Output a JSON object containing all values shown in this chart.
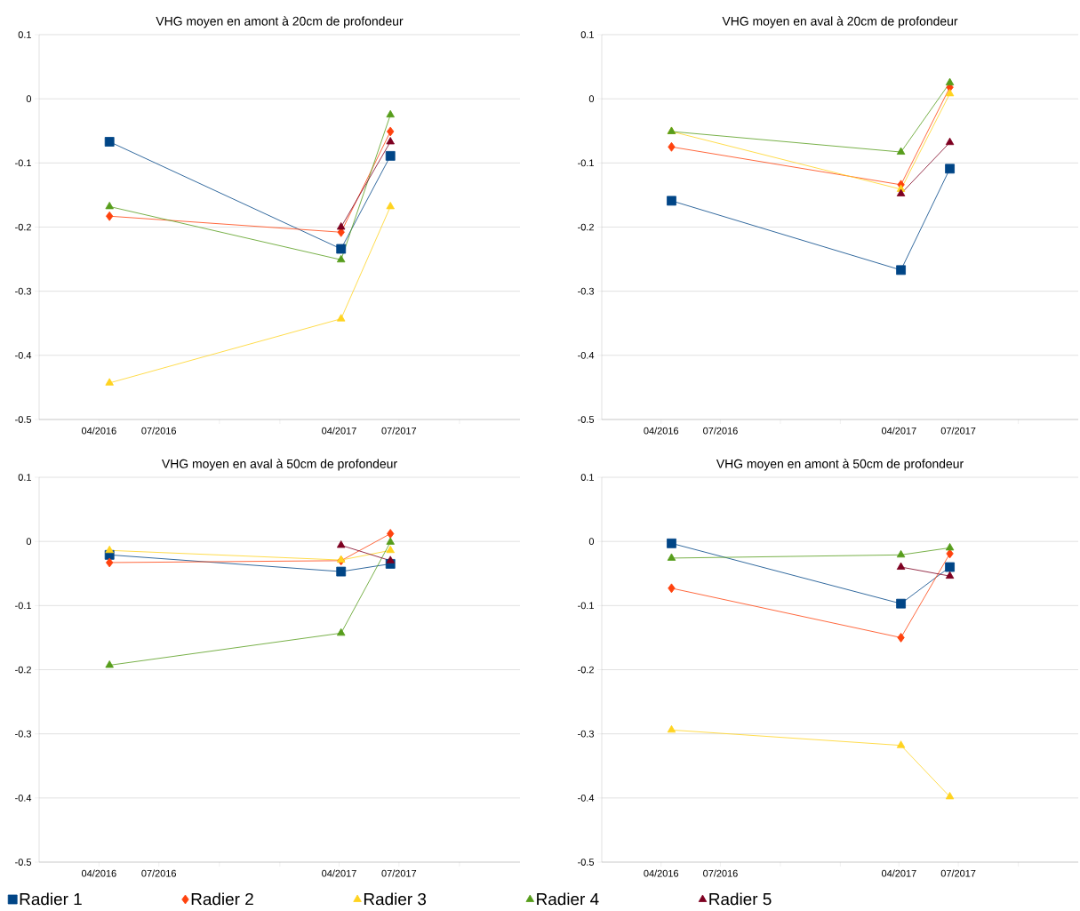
{
  "chart_data": [
    {
      "type": "line",
      "title": "VHG moyen en amont à 20cm de profondeur",
      "x": [
        "2016-04-17",
        "2017-04-04",
        "2017-06-18"
      ],
      "xlim": [
        "2016-01-01",
        "2018-01-01"
      ],
      "xticks": [
        {
          "value": "2016-04-01",
          "label": "04/2016"
        },
        {
          "value": "2016-07-01",
          "label": "07/2016"
        },
        {
          "value": "2016-10-01",
          "label": null
        },
        {
          "value": "2017-01-01",
          "label": null
        },
        {
          "value": "2017-04-01",
          "label": "04/2017"
        },
        {
          "value": "2017-07-01",
          "label": "07/2017"
        },
        {
          "value": "2017-10-01",
          "label": null
        }
      ],
      "ylim": [
        -0.5,
        0.1
      ],
      "yticks": [
        -0.5,
        -0.4,
        -0.3,
        -0.2,
        -0.1,
        0,
        0.1
      ],
      "grid": "y",
      "line_style": "solid",
      "series": [
        {
          "color": "#004586",
          "marker": "square",
          "values": [
            -0.067,
            -0.234,
            -0.089
          ]
        },
        {
          "color": "#ff420e",
          "marker": "diamond",
          "values": [
            -0.183,
            -0.208,
            -0.051
          ]
        },
        {
          "color": "#ffd320",
          "marker": "triangle",
          "values": [
            -0.443,
            -0.343,
            -0.168
          ]
        },
        {
          "color": "#579d1c",
          "marker": "triangle",
          "values": [
            -0.168,
            -0.251,
            -0.025
          ]
        },
        {
          "color": "#7e0021",
          "marker": "triangle",
          "values": [
            null,
            -0.2,
            -0.067
          ]
        }
      ]
    },
    {
      "type": "line",
      "title": "VHG moyen en aval à 20cm de profondeur",
      "x": [
        "2016-04-17",
        "2017-04-04",
        "2017-06-18"
      ],
      "xlim": [
        "2016-01-01",
        "2018-01-01"
      ],
      "xticks": [
        {
          "value": "2016-04-01",
          "label": "04/2016"
        },
        {
          "value": "2016-07-01",
          "label": "07/2016"
        },
        {
          "value": "2016-10-01",
          "label": null
        },
        {
          "value": "2017-01-01",
          "label": null
        },
        {
          "value": "2017-04-01",
          "label": "04/2017"
        },
        {
          "value": "2017-07-01",
          "label": "07/2017"
        },
        {
          "value": "2017-10-01",
          "label": null
        }
      ],
      "ylim": [
        -0.5,
        0.1
      ],
      "yticks": [
        -0.5,
        -0.4,
        -0.3,
        -0.2,
        -0.1,
        0,
        0.1
      ],
      "grid": "y",
      "line_style": "solid",
      "series": [
        {
          "color": "#004586",
          "marker": "square",
          "values": [
            -0.159,
            -0.267,
            -0.109
          ]
        },
        {
          "color": "#ff420e",
          "marker": "diamond",
          "values": [
            -0.075,
            -0.134,
            0.018
          ]
        },
        {
          "color": "#ffd320",
          "marker": "triangle",
          "values": [
            -0.051,
            -0.141,
            0.008
          ]
        },
        {
          "color": "#579d1c",
          "marker": "triangle",
          "values": [
            -0.051,
            -0.083,
            0.025
          ]
        },
        {
          "color": "#7e0021",
          "marker": "triangle",
          "values": [
            null,
            -0.148,
            -0.068
          ]
        }
      ]
    },
    {
      "type": "line",
      "title": "VHG moyen en aval à 50cm de profondeur",
      "x": [
        "2016-04-17",
        "2017-04-04",
        "2017-06-18"
      ],
      "legend": "bottom",
      "xlim": [
        "2016-01-01",
        "2018-01-01"
      ],
      "xticks": [
        {
          "value": "2016-04-01",
          "label": "04/2016"
        },
        {
          "value": "2016-07-01",
          "label": "07/2016"
        },
        {
          "value": "2016-10-01",
          "label": null
        },
        {
          "value": "2017-01-01",
          "label": null
        },
        {
          "value": "2017-04-01",
          "label": "04/2017"
        },
        {
          "value": "2017-07-01",
          "label": "07/2017"
        },
        {
          "value": "2017-10-01",
          "label": null
        }
      ],
      "ylim": [
        -0.5,
        0.1
      ],
      "yticks": [
        -0.5,
        -0.4,
        -0.3,
        -0.2,
        -0.1,
        0,
        0.1
      ],
      "grid": "y",
      "line_style": "solid",
      "series": [
        {
          "name": "Radier 1",
          "color": "#004586",
          "marker": "square",
          "values": [
            -0.021,
            -0.047,
            -0.035
          ]
        },
        {
          "name": "Radier 2",
          "color": "#ff420e",
          "marker": "diamond",
          "values": [
            -0.033,
            -0.03,
            0.012
          ]
        },
        {
          "name": "Radier 3",
          "color": "#ffd320",
          "marker": "triangle",
          "values": [
            -0.014,
            -0.029,
            -0.014
          ]
        },
        {
          "name": "Radier 4",
          "color": "#579d1c",
          "marker": "triangle",
          "values": [
            -0.193,
            -0.143,
            -0.001
          ]
        },
        {
          "name": "Radier 5",
          "color": "#7e0021",
          "marker": "triangle",
          "values": [
            null,
            -0.006,
            -0.03
          ]
        }
      ]
    },
    {
      "type": "line",
      "title": "VHG moyen en amont à 50cm de profondeur",
      "x": [
        "2016-04-17",
        "2017-04-04",
        "2017-06-18"
      ],
      "xlim": [
        "2016-01-01",
        "2018-01-01"
      ],
      "xticks": [
        {
          "value": "2016-04-01",
          "label": "04/2016"
        },
        {
          "value": "2016-07-01",
          "label": "07/2016"
        },
        {
          "value": "2016-10-01",
          "label": null
        },
        {
          "value": "2017-01-01",
          "label": null
        },
        {
          "value": "2017-04-01",
          "label": "04/2017"
        },
        {
          "value": "2017-07-01",
          "label": "07/2017"
        },
        {
          "value": "2017-10-01",
          "label": null
        }
      ],
      "ylim": [
        -0.5,
        0.1
      ],
      "yticks": [
        -0.5,
        -0.4,
        -0.3,
        -0.2,
        -0.1,
        0,
        0.1
      ],
      "grid": "y",
      "line_style": "solid",
      "series": [
        {
          "color": "#004586",
          "marker": "square",
          "values": [
            -0.003,
            -0.097,
            -0.04
          ]
        },
        {
          "color": "#ff420e",
          "marker": "diamond",
          "values": [
            -0.073,
            -0.15,
            -0.019
          ]
        },
        {
          "color": "#ffd320",
          "marker": "triangle",
          "values": [
            -0.294,
            -0.318,
            -0.398
          ]
        },
        {
          "color": "#579d1c",
          "marker": "triangle",
          "values": [
            -0.026,
            -0.021,
            -0.01
          ]
        },
        {
          "color": "#7e0021",
          "marker": "triangle",
          "values": [
            null,
            -0.04,
            -0.054
          ]
        }
      ]
    }
  ]
}
